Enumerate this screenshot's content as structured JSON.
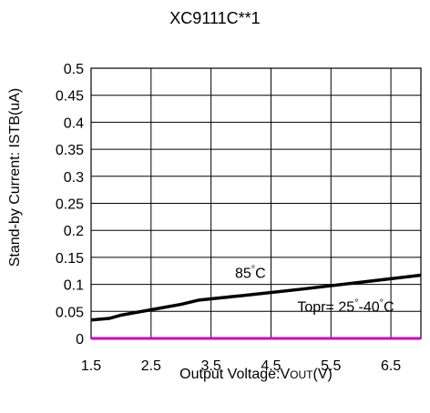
{
  "chart_data": {
    "type": "line",
    "title": "XC9111C**1",
    "xlabel": {
      "prefix": "Output Voltage:V",
      "small": "OUT",
      "suffix": "(V)"
    },
    "ylabel": "Stand-by Current: ISTB(uA)",
    "xlim": [
      1.5,
      7.0
    ],
    "ylim": [
      0,
      0.5
    ],
    "xticks": [
      "1.5",
      "2.5",
      "3.5",
      "4.5",
      "5.5",
      "6.5"
    ],
    "yticks": [
      "0",
      "0.05",
      "0.1",
      "0.15",
      "0.2",
      "0.25",
      "0.3",
      "0.35",
      "0.4",
      "0.45",
      "0.5"
    ],
    "grid": true,
    "series": [
      {
        "name": "85°C",
        "color": "#000000",
        "x": [
          1.5,
          1.8,
          2.0,
          2.5,
          3.0,
          3.3,
          4.0,
          5.0,
          6.0,
          7.0
        ],
        "y": [
          0.034,
          0.037,
          0.043,
          0.053,
          0.063,
          0.071,
          0.079,
          0.091,
          0.104,
          0.117
        ]
      },
      {
        "name": "Topr= 25°-40°C",
        "color": "#cc00cc",
        "x": [
          1.5,
          7.0
        ],
        "y": [
          0.0,
          0.0
        ]
      }
    ],
    "annotations": [
      {
        "text": "85°C",
        "series": 0
      },
      {
        "text": "Topr= 25°-40°C",
        "series": 1
      }
    ]
  }
}
